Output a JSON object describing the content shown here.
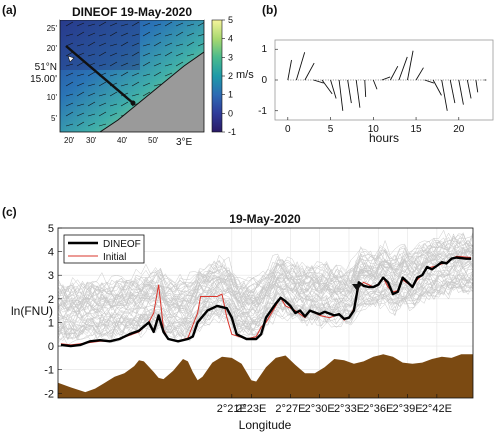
{
  "colors": {
    "dineof": "#000000",
    "initial": "#d9342b",
    "background_lines": "#c9c9c9",
    "depth_fill": "#7b4a12",
    "land": "#9a9a9a"
  },
  "chart_data": [
    {
      "type": "heatmap",
      "panel_label": "(a)",
      "title": "DINEOF 19-May-2020",
      "lat_labels": [
        "25'",
        "20'",
        "15.00'",
        "10'",
        "5'"
      ],
      "lat_degree_label": "51°N",
      "lon_labels": [
        "20'",
        "30'",
        "40'",
        "50'"
      ],
      "lon_degree_label": "3°E",
      "colorbar": {
        "label": "m/s",
        "ticks": [
          5,
          4,
          3,
          2,
          1,
          0,
          -1
        ],
        "range": [
          -1,
          5
        ],
        "colormap": "viridis-like"
      },
      "transect": {
        "start_marker": "white-triangle",
        "end_marker": "black-dot"
      }
    },
    {
      "type": "line",
      "subtype": "wind-stick-plot",
      "panel_label": "(b)",
      "xlabel": "hours",
      "xticks": [
        0,
        5,
        10,
        15,
        20
      ],
      "xlim": [
        -1.5,
        24
      ],
      "yticks": [
        1,
        0,
        -1
      ],
      "ylim": [
        -1.3,
        1.3
      ],
      "sticks": [
        {
          "hour": 0,
          "u": 0.2,
          "v": 0.65
        },
        {
          "hour": 1,
          "u": 0.45,
          "v": 0.9
        },
        {
          "hour": 2,
          "u": 0.5,
          "v": 0.55
        },
        {
          "hour": 3,
          "u": 0.55,
          "v": -0.1
        },
        {
          "hour": 4,
          "u": 0.55,
          "v": -0.45
        },
        {
          "hour": 5,
          "u": 0.3,
          "v": -0.6
        },
        {
          "hour": 6,
          "u": 0.2,
          "v": -1.0
        },
        {
          "hour": 7,
          "u": 0.2,
          "v": -0.75
        },
        {
          "hour": 8,
          "u": 0.2,
          "v": -0.9
        },
        {
          "hour": 9,
          "u": 0.05,
          "v": -0.55
        },
        {
          "hour": 10,
          "u": 0.2,
          "v": -0.3
        },
        {
          "hour": 11,
          "u": 0.45,
          "v": 0.1
        },
        {
          "hour": 12,
          "u": 0.4,
          "v": 0.45
        },
        {
          "hour": 13,
          "u": 0.45,
          "v": 0.75
        },
        {
          "hour": 14,
          "u": 0.3,
          "v": 0.95
        },
        {
          "hour": 15,
          "u": 0.4,
          "v": 0.4
        },
        {
          "hour": 16,
          "u": 0.5,
          "v": -0.1
        },
        {
          "hour": 17,
          "u": 0.45,
          "v": -0.5
        },
        {
          "hour": 18,
          "u": 0.3,
          "v": -1.0
        },
        {
          "hour": 19,
          "u": 0.25,
          "v": -0.75
        },
        {
          "hour": 20,
          "u": 0.25,
          "v": -0.8
        },
        {
          "hour": 21,
          "u": 0.2,
          "v": -0.6
        },
        {
          "hour": 22,
          "u": 0.1,
          "v": -0.4
        },
        {
          "hour": 23,
          "u": 0.1,
          "v": 0.0
        }
      ]
    },
    {
      "type": "line",
      "panel_label": "(c)",
      "title": "19-May-2020",
      "xlabel": "Longitude",
      "ylabel": "ln(FNU)",
      "xlim": [
        3.2,
        45.7
      ],
      "ylim": [
        -2.2,
        5
      ],
      "x_unit_note": "minutes east of 2°E",
      "xticks": [
        {
          "value": 21,
          "label": "2°21E"
        },
        {
          "value": 23,
          "label": "2°23E"
        },
        {
          "value": 27,
          "label": "2°27E"
        },
        {
          "value": 30,
          "label": "2°30E"
        },
        {
          "value": 33,
          "label": "2°33E"
        },
        {
          "value": 36,
          "label": "2°36E"
        },
        {
          "value": 39,
          "label": "2°39E"
        },
        {
          "value": 42,
          "label": "2°42E"
        }
      ],
      "yticks": [
        5,
        4,
        3,
        2,
        1,
        0,
        -1,
        -2
      ],
      "grid": true,
      "legend": {
        "position": "top-left",
        "entries": [
          "DINEOF",
          "Initial"
        ]
      },
      "series": [
        {
          "name": "DINEOF",
          "points": [
            [
              3.5,
              0.05
            ],
            [
              4.5,
              0.0
            ],
            [
              5.5,
              0.05
            ],
            [
              6.5,
              0.2
            ],
            [
              7.5,
              0.25
            ],
            [
              8.5,
              0.2
            ],
            [
              9.5,
              0.3
            ],
            [
              10.5,
              0.5
            ],
            [
              11.5,
              0.65
            ],
            [
              12.5,
              1.0
            ],
            [
              13.0,
              0.6
            ],
            [
              13.5,
              1.3
            ],
            [
              14.0,
              0.6
            ],
            [
              14.5,
              0.3
            ],
            [
              15.5,
              0.2
            ],
            [
              16.5,
              0.3
            ],
            [
              17.0,
              0.4
            ],
            [
              17.5,
              1.0
            ],
            [
              18.5,
              1.5
            ],
            [
              19.5,
              1.7
            ],
            [
              20.5,
              1.6
            ],
            [
              21.0,
              1.2
            ],
            [
              21.5,
              0.5
            ],
            [
              22.5,
              0.3
            ],
            [
              23.5,
              0.3
            ],
            [
              24.0,
              0.5
            ],
            [
              24.5,
              1.2
            ],
            [
              25.5,
              1.8
            ],
            [
              26.0,
              2.05
            ],
            [
              26.5,
              1.9
            ],
            [
              27.0,
              1.7
            ],
            [
              27.5,
              1.4
            ],
            [
              28.0,
              1.5
            ],
            [
              28.5,
              1.25
            ],
            [
              29.0,
              1.5
            ],
            [
              30.0,
              1.35
            ],
            [
              30.5,
              1.45
            ],
            [
              31.5,
              1.3
            ],
            [
              32.0,
              1.35
            ],
            [
              32.5,
              1.15
            ],
            [
              33.0,
              1.2
            ],
            [
              33.5,
              1.5
            ],
            [
              34.0,
              2.7
            ],
            [
              34.5,
              2.55
            ],
            [
              35.0,
              2.5
            ],
            [
              35.5,
              2.5
            ],
            [
              36.0,
              2.6
            ],
            [
              36.5,
              2.9
            ],
            [
              37.0,
              2.7
            ],
            [
              37.5,
              2.2
            ],
            [
              38.0,
              2.3
            ],
            [
              38.5,
              2.9
            ],
            [
              39.0,
              2.7
            ],
            [
              39.5,
              2.5
            ],
            [
              40.0,
              2.9
            ],
            [
              40.5,
              3.0
            ],
            [
              41.0,
              3.35
            ],
            [
              41.5,
              3.25
            ],
            [
              42.0,
              3.4
            ],
            [
              42.5,
              3.55
            ],
            [
              43.0,
              3.5
            ],
            [
              43.5,
              3.7
            ],
            [
              44.0,
              3.75
            ],
            [
              45.0,
              3.7
            ],
            [
              45.5,
              3.7
            ]
          ]
        },
        {
          "name": "Initial",
          "points": [
            [
              3.5,
              0.1
            ],
            [
              4.5,
              0.05
            ],
            [
              5.5,
              0.1
            ],
            [
              6.5,
              0.15
            ],
            [
              7.5,
              0.2
            ],
            [
              8.5,
              0.2
            ],
            [
              9.5,
              0.3
            ],
            [
              10.5,
              0.45
            ],
            [
              11.5,
              0.6
            ],
            [
              12.5,
              1.0
            ],
            [
              13.0,
              1.4
            ],
            [
              13.5,
              2.6
            ],
            [
              13.8,
              1.5
            ],
            [
              14.0,
              0.7
            ],
            [
              14.5,
              0.3
            ],
            [
              15.5,
              0.2
            ],
            [
              16.5,
              0.35
            ],
            [
              17.5,
              1.4
            ],
            [
              17.8,
              2.1
            ],
            [
              18.5,
              2.1
            ],
            [
              19.5,
              2.1
            ],
            [
              20.0,
              2.2
            ],
            [
              20.5,
              1.2
            ],
            [
              21.0,
              0.5
            ],
            [
              22.5,
              0.3
            ],
            [
              23.5,
              0.4
            ],
            [
              24.0,
              0.8
            ],
            [
              24.5,
              1.0
            ],
            [
              25.5,
              1.7
            ],
            [
              26.0,
              2.05
            ],
            [
              26.5,
              1.7
            ],
            [
              27.5,
              1.5
            ],
            [
              28.5,
              1.2
            ],
            [
              29.0,
              1.5
            ],
            [
              30.0,
              1.3
            ],
            [
              31.0,
              1.2
            ],
            [
              32.0,
              1.35
            ],
            [
              32.5,
              1.1
            ],
            [
              33.0,
              1.2
            ],
            [
              33.5,
              1.6
            ],
            [
              34.0,
              2.5
            ],
            [
              34.5,
              2.7
            ],
            [
              35.5,
              2.5
            ],
            [
              36.0,
              2.6
            ],
            [
              36.5,
              2.9
            ],
            [
              37.0,
              2.5
            ],
            [
              37.5,
              2.3
            ],
            [
              38.0,
              2.35
            ],
            [
              38.5,
              2.8
            ],
            [
              39.5,
              2.5
            ],
            [
              40.0,
              2.8
            ],
            [
              40.5,
              3.0
            ],
            [
              41.0,
              3.3
            ],
            [
              42.0,
              3.4
            ],
            [
              43.0,
              3.55
            ],
            [
              44.0,
              3.8
            ],
            [
              45.5,
              3.75
            ]
          ]
        }
      ],
      "background_lines_count": 60,
      "depth_profile": [
        [
          3.2,
          -1.55
        ],
        [
          4.5,
          -1.75
        ],
        [
          6.0,
          -1.95
        ],
        [
          7.0,
          -1.8
        ],
        [
          8.0,
          -1.55
        ],
        [
          9.0,
          -1.3
        ],
        [
          10.0,
          -1.15
        ],
        [
          11.0,
          -0.85
        ],
        [
          11.5,
          -0.6
        ],
        [
          12.0,
          -0.65
        ],
        [
          13.0,
          -1.1
        ],
        [
          13.5,
          -1.35
        ],
        [
          14.0,
          -1.4
        ],
        [
          15.0,
          -1.05
        ],
        [
          15.5,
          -0.8
        ],
        [
          16.0,
          -0.55
        ],
        [
          16.5,
          -0.65
        ],
        [
          17.0,
          -1.1
        ],
        [
          17.5,
          -1.45
        ],
        [
          18.0,
          -1.3
        ],
        [
          19.0,
          -0.7
        ],
        [
          20.0,
          -0.45
        ],
        [
          21.0,
          -0.5
        ],
        [
          22.0,
          -0.75
        ],
        [
          22.5,
          -1.1
        ],
        [
          23.0,
          -1.45
        ],
        [
          23.5,
          -1.5
        ],
        [
          24.5,
          -0.9
        ],
        [
          25.5,
          -0.5
        ],
        [
          26.5,
          -0.4
        ],
        [
          27.5,
          -0.8
        ],
        [
          28.5,
          -1.15
        ],
        [
          29.5,
          -1.15
        ],
        [
          30.5,
          -0.9
        ],
        [
          31.5,
          -0.55
        ],
        [
          32.5,
          -0.6
        ],
        [
          33.5,
          -0.75
        ],
        [
          34.5,
          -0.65
        ],
        [
          35.5,
          -0.45
        ],
        [
          36.5,
          -0.35
        ],
        [
          37.5,
          -0.45
        ],
        [
          38.5,
          -0.7
        ],
        [
          39.5,
          -0.75
        ],
        [
          40.5,
          -0.7
        ],
        [
          41.5,
          -0.55
        ],
        [
          42.5,
          -0.45
        ],
        [
          43.5,
          -0.5
        ],
        [
          44.5,
          -0.35
        ],
        [
          45.7,
          -0.35
        ]
      ]
    }
  ]
}
